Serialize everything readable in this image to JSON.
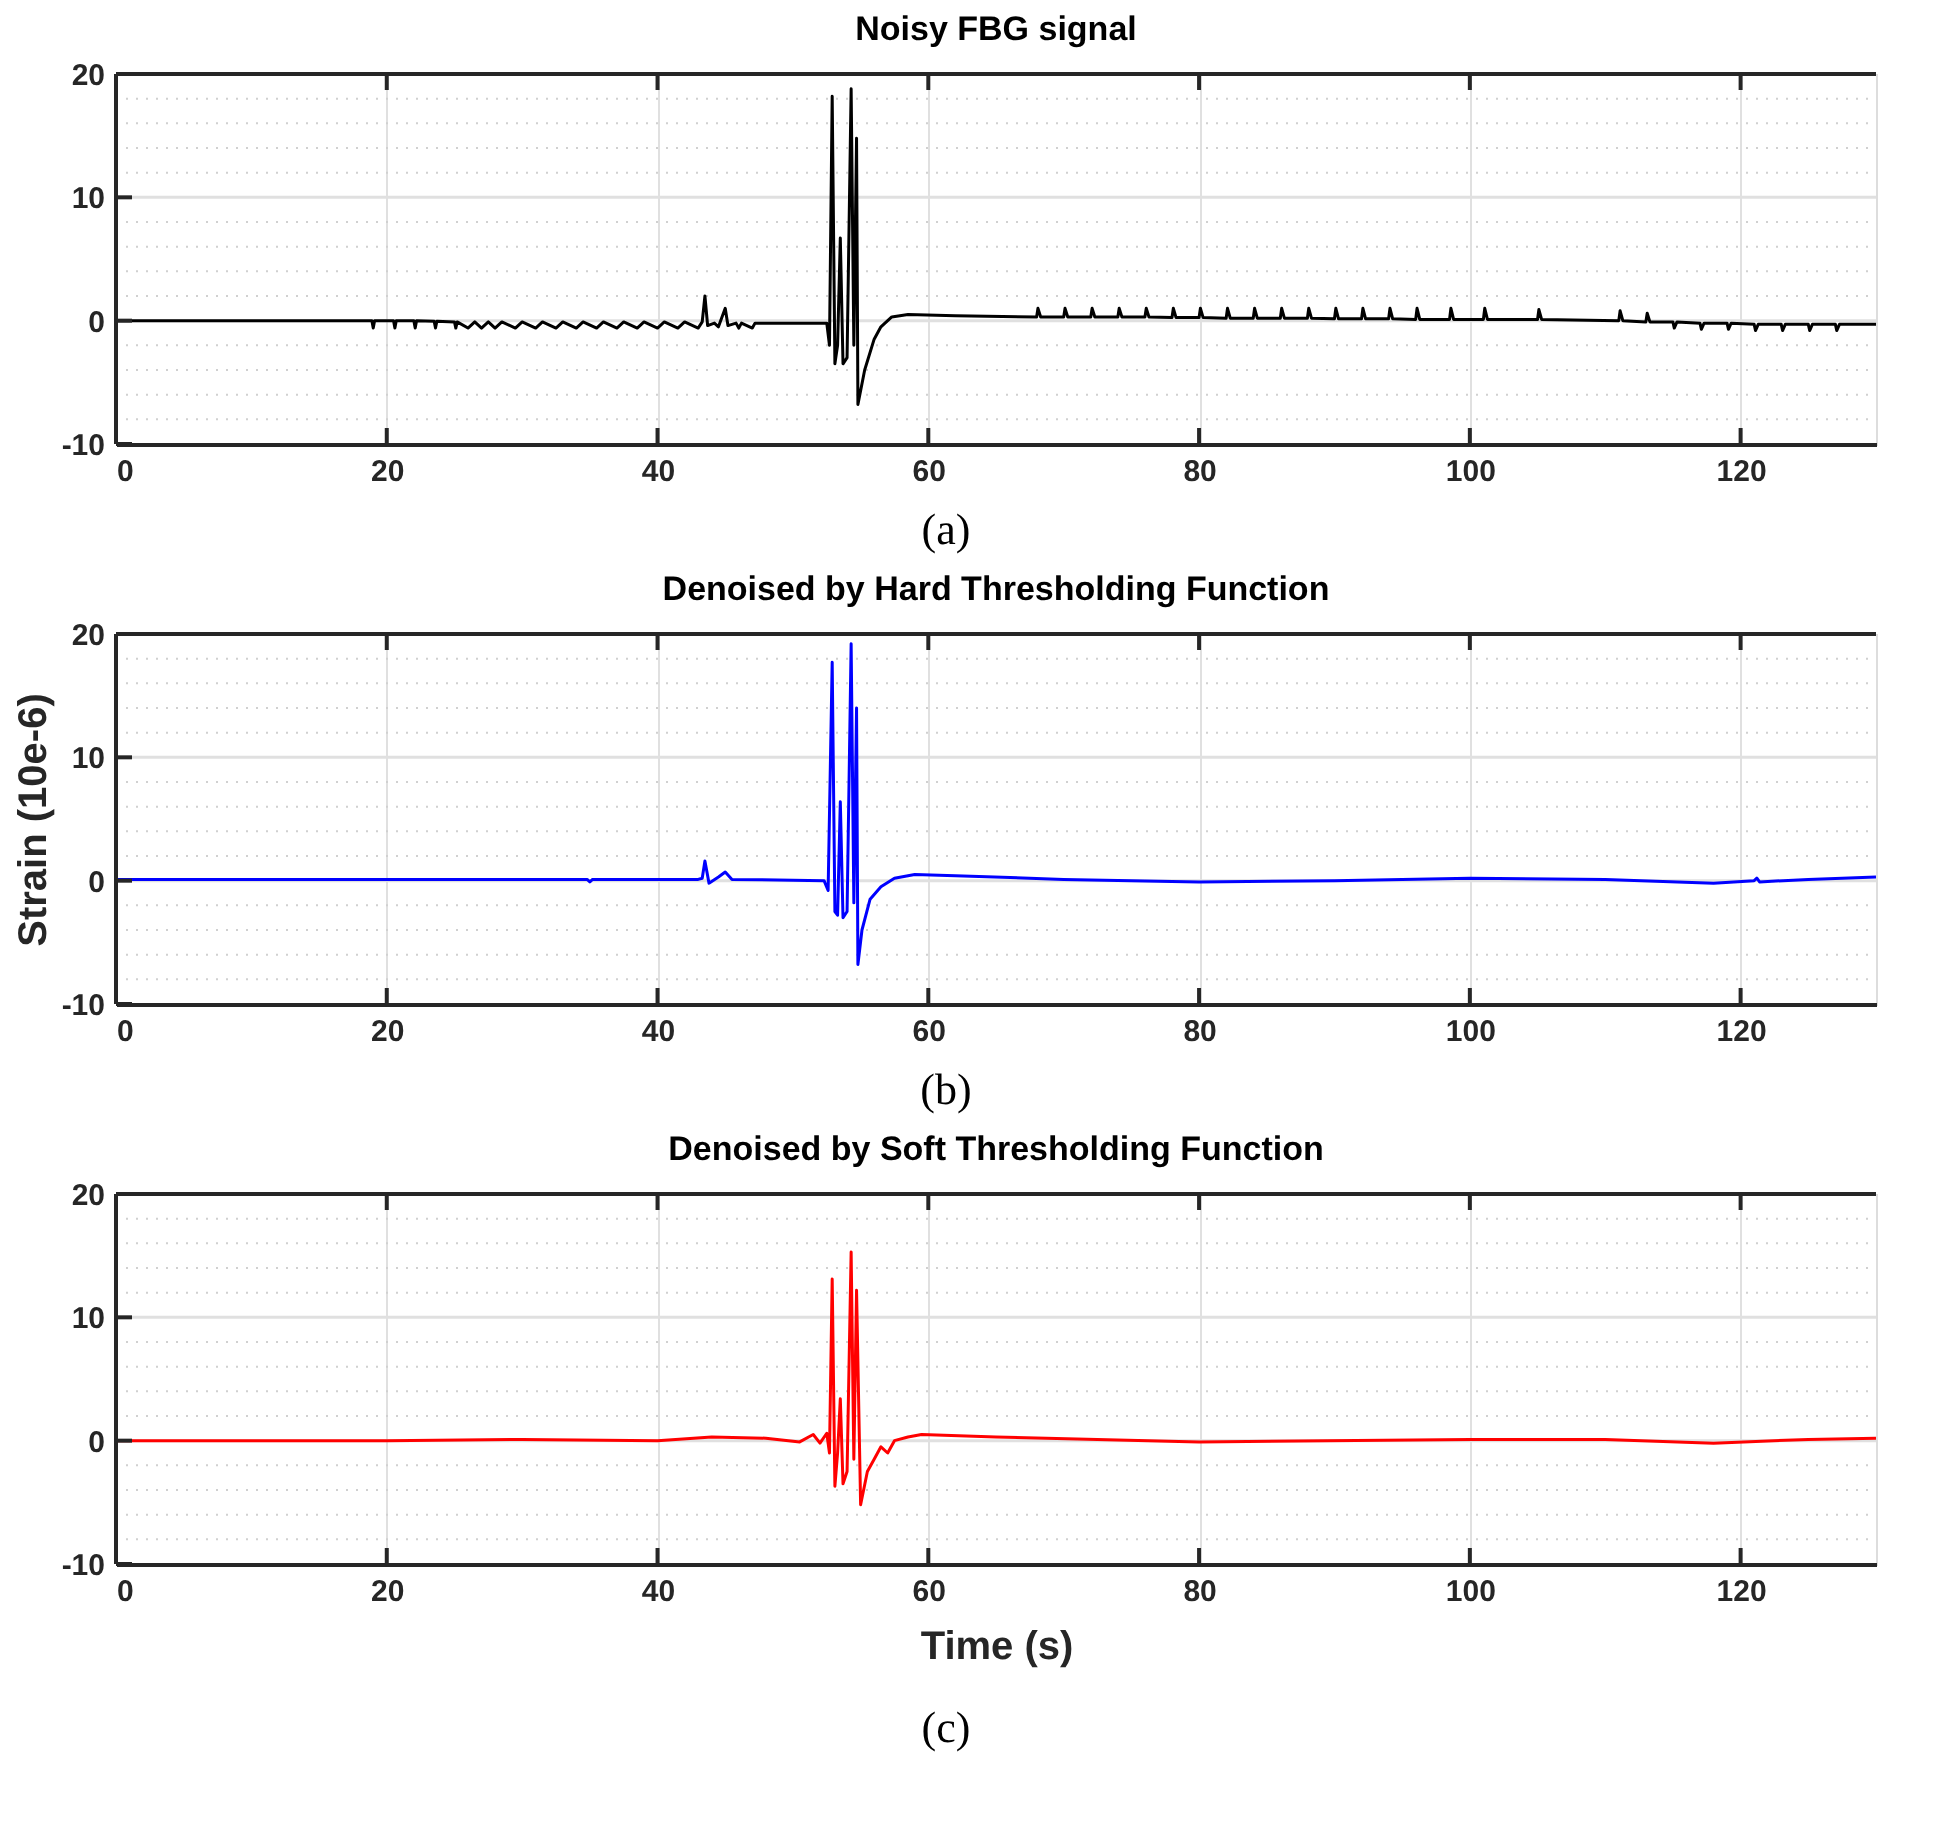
{
  "chart_data": [
    {
      "type": "line",
      "title": "Noisy FBG signal",
      "annotations": [
        "(a)"
      ],
      "xlim": [
        0,
        130
      ],
      "xticks": [
        0,
        20,
        40,
        60,
        80,
        100,
        120
      ],
      "ylim": [
        -10,
        20
      ],
      "yticks": [
        -10,
        {
          "value": -8,
          "label": null
        },
        {
          "value": -6,
          "label": null
        },
        {
          "value": -4,
          "label": null
        },
        {
          "value": -2,
          "label": null
        },
        0,
        {
          "value": 2,
          "label": null
        },
        {
          "value": 4,
          "label": null
        },
        {
          "value": 6,
          "label": null
        },
        {
          "value": 8,
          "label": null
        },
        10,
        {
          "value": 12,
          "label": null
        },
        {
          "value": 14,
          "label": null
        },
        {
          "value": 16,
          "label": null
        },
        {
          "value": 18,
          "label": null
        },
        20
      ],
      "grid": true,
      "x": [
        0,
        18.9,
        19,
        19.1,
        20.5,
        20.6,
        20.7,
        22,
        22.1,
        22.2,
        23.5,
        23.6,
        23.7,
        25,
        25.1,
        25.2,
        26,
        26.5,
        27,
        27.5,
        28,
        28.5,
        29.5,
        30,
        31,
        31.5,
        32.5,
        33,
        34,
        34.5,
        35.5,
        36,
        37,
        37.5,
        38.5,
        39,
        40,
        40.5,
        41.5,
        42,
        43,
        43.3,
        43.5,
        43.7,
        44.2,
        44.5,
        45,
        45.2,
        45.8,
        46,
        46.2,
        47,
        47.2,
        52.5,
        52.7,
        52.9,
        53.1,
        53.3,
        53.5,
        53.7,
        54.0,
        54.3,
        54.5,
        54.7,
        54.8,
        55.3,
        56,
        56.5,
        57.3,
        58.5,
        62,
        68,
        68.1,
        68.3,
        70,
        70.1,
        70.3,
        72,
        72.1,
        72.3,
        74,
        74.1,
        74.3,
        76,
        76.1,
        76.3,
        78,
        78.1,
        78.3,
        80,
        80.1,
        80.3,
        82,
        82.1,
        82.3,
        84,
        84.1,
        84.3,
        86,
        86.1,
        86.3,
        88,
        88.1,
        88.3,
        90,
        90.1,
        90.3,
        92,
        92.1,
        92.3,
        94,
        94.1,
        94.3,
        96,
        96.1,
        96.3,
        98.5,
        98.6,
        98.8,
        101,
        101.1,
        101.3,
        105,
        105.1,
        105.3,
        111,
        111.1,
        111.3,
        113,
        113.1,
        113.3,
        115,
        115.1,
        115.3,
        117,
        117.1,
        117.3,
        119,
        119.1,
        119.3,
        121,
        121.1,
        121.3,
        123,
        123.1,
        123.3,
        125,
        125.1,
        125.3,
        127,
        127.1,
        127.3,
        129.5,
        130
      ],
      "series": [
        {
          "color": "#000000",
          "values": [
            0,
            0,
            -0.6,
            0,
            0,
            -0.6,
            0,
            0,
            -0.6,
            0,
            -0.05,
            -0.6,
            -0.05,
            -0.1,
            -0.6,
            -0.1,
            -0.6,
            -0.1,
            -0.6,
            -0.1,
            -0.6,
            -0.1,
            -0.6,
            -0.1,
            -0.6,
            -0.1,
            -0.6,
            -0.1,
            -0.6,
            -0.1,
            -0.6,
            -0.1,
            -0.6,
            -0.1,
            -0.6,
            -0.1,
            -0.6,
            -0.1,
            -0.6,
            -0.1,
            -0.6,
            -0.1,
            2,
            -0.4,
            -0.2,
            -0.5,
            1,
            -0.4,
            -0.2,
            -0.6,
            -0.2,
            -0.6,
            -0.2,
            -0.2,
            -2,
            18.2,
            -3.5,
            -2,
            6.7,
            -3.5,
            -3,
            18.8,
            -2,
            14.8,
            -6.8,
            -4,
            -1.5,
            -0.5,
            0.3,
            0.5,
            0.4,
            0.3,
            1,
            0.3,
            0.3,
            1,
            0.3,
            0.3,
            1,
            0.3,
            0.3,
            1,
            0.3,
            0.3,
            1,
            0.3,
            0.25,
            1,
            0.25,
            0.25,
            1,
            0.25,
            0.2,
            1,
            0.2,
            0.2,
            1,
            0.2,
            0.2,
            1,
            0.2,
            0.2,
            1,
            0.2,
            0.15,
            1,
            0.15,
            0.15,
            1,
            0.15,
            0.15,
            1,
            0.15,
            0.1,
            1,
            0.1,
            0.1,
            1,
            0.1,
            0.1,
            1,
            0.1,
            0.1,
            0.9,
            0.1,
            0,
            0.8,
            0,
            -0.1,
            0.6,
            -0.1,
            -0.1,
            -0.6,
            -0.1,
            -0.2,
            -0.7,
            -0.2,
            -0.2,
            -0.7,
            -0.2,
            -0.3,
            -0.8,
            -0.3,
            -0.3,
            -0.8,
            -0.3,
            -0.3,
            -0.8,
            -0.3,
            -0.3,
            -0.8,
            -0.3,
            -0.3,
            -0.3
          ]
        }
      ]
    },
    {
      "type": "line",
      "title": "Denoised by Hard Thresholding Function",
      "ylabel": "Strain (10e-6)",
      "annotations": [
        "(b)"
      ],
      "xlim": [
        0,
        130
      ],
      "xticks": [
        0,
        20,
        40,
        60,
        80,
        100,
        120
      ],
      "ylim": [
        -10,
        20
      ],
      "yticks": [
        -10,
        {
          "value": -8,
          "label": null
        },
        {
          "value": -6,
          "label": null
        },
        {
          "value": -4,
          "label": null
        },
        {
          "value": -2,
          "label": null
        },
        0,
        {
          "value": 2,
          "label": null
        },
        {
          "value": 4,
          "label": null
        },
        {
          "value": 6,
          "label": null
        },
        {
          "value": 8,
          "label": null
        },
        10,
        {
          "value": 12,
          "label": null
        },
        {
          "value": 14,
          "label": null
        },
        {
          "value": 16,
          "label": null
        },
        {
          "value": 18,
          "label": null
        },
        20
      ],
      "grid": true,
      "x": [
        0,
        20,
        34.8,
        35,
        35.2,
        43,
        43.3,
        43.5,
        43.8,
        44.5,
        45,
        45.5,
        52.3,
        52.6,
        52.9,
        53.1,
        53.3,
        53.5,
        53.7,
        54.0,
        54.3,
        54.5,
        54.7,
        54.8,
        55.1,
        55.7,
        56.5,
        57.5,
        59,
        62,
        70,
        80,
        90,
        100,
        110,
        118,
        121,
        121.2,
        121.4,
        125,
        130
      ],
      "series": [
        {
          "color": "#0000ff",
          "values": [
            0.1,
            0.1,
            0.1,
            -0.1,
            0.1,
            0.1,
            0.2,
            1.6,
            -0.2,
            0.3,
            0.7,
            0.1,
            0,
            -0.8,
            17.7,
            -2.5,
            -2.8,
            6.4,
            -3,
            -2.5,
            19.2,
            -1.8,
            14,
            -6.8,
            -4,
            -1.5,
            -0.5,
            0.2,
            0.5,
            0.4,
            0.1,
            -0.1,
            0,
            0.2,
            0.1,
            -0.2,
            0,
            0.2,
            -0.1,
            0.1,
            0.3
          ]
        }
      ]
    },
    {
      "type": "line",
      "title": "Denoised by Soft Thresholding Function",
      "xlabel": "Time (s)",
      "annotations": [
        "(c)"
      ],
      "xlim": [
        0,
        130
      ],
      "xticks": [
        0,
        20,
        40,
        60,
        80,
        100,
        120
      ],
      "ylim": [
        -10,
        20
      ],
      "yticks": [
        -10,
        {
          "value": -8,
          "label": null
        },
        {
          "value": -6,
          "label": null
        },
        {
          "value": -4,
          "label": null
        },
        {
          "value": -2,
          "label": null
        },
        0,
        {
          "value": 2,
          "label": null
        },
        {
          "value": 4,
          "label": null
        },
        {
          "value": 6,
          "label": null
        },
        {
          "value": 8,
          "label": null
        },
        10,
        {
          "value": 12,
          "label": null
        },
        {
          "value": 14,
          "label": null
        },
        {
          "value": 16,
          "label": null
        },
        {
          "value": 18,
          "label": null
        },
        20
      ],
      "grid": true,
      "x": [
        0,
        20,
        30,
        40,
        44,
        48,
        50.5,
        51.5,
        52,
        52.5,
        52.7,
        52.9,
        53.1,
        53.3,
        53.5,
        53.7,
        54.0,
        54.3,
        54.5,
        54.7,
        55.0,
        55.5,
        56,
        56.5,
        57,
        57.5,
        58.5,
        59.5,
        65,
        80,
        100,
        110,
        118,
        125,
        130
      ],
      "series": [
        {
          "color": "#ff0000",
          "values": [
            0,
            0,
            0.1,
            0,
            0.3,
            0.2,
            -0.1,
            0.5,
            -0.2,
            0.6,
            -1,
            13.1,
            -3.7,
            -1,
            3.4,
            -3.5,
            -2.5,
            15.3,
            -1.5,
            12.2,
            -5.2,
            -2.5,
            -1.5,
            -0.5,
            -1,
            0,
            0.3,
            0.5,
            0.3,
            -0.1,
            0.1,
            0.1,
            -0.2,
            0.1,
            0.2
          ]
        }
      ]
    }
  ]
}
